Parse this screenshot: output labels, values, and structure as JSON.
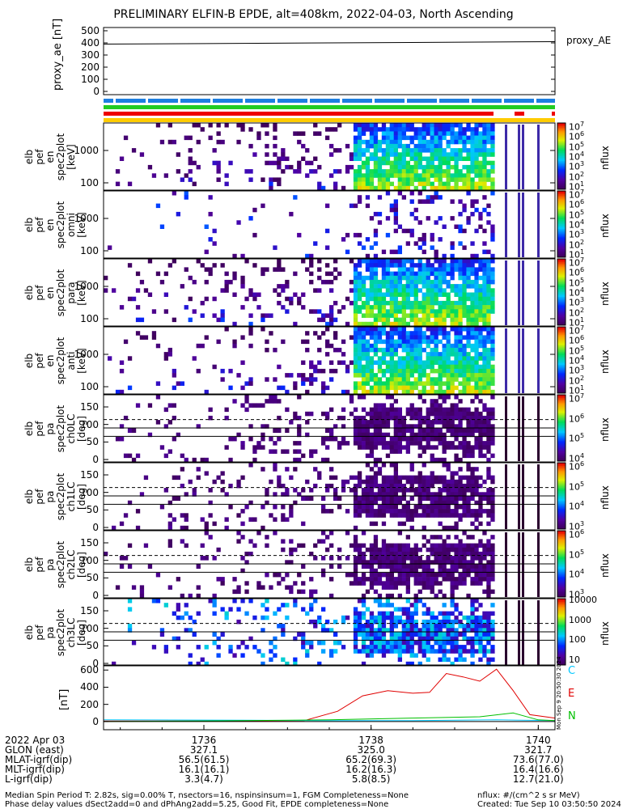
{
  "title": "PRELIMINARY ELFIN-B EPDE, alt=408km, 2022-04-03, North Ascending",
  "proxy_ae": {
    "ylabel": "proxy_ae [nT]",
    "legend": "proxy_AE",
    "yticks": [
      "500",
      "400",
      "300",
      "200",
      "100",
      "0"
    ]
  },
  "panels": [
    {
      "ylabel": [
        "elb",
        "pef",
        "en",
        "spec2plot",
        "[keV]"
      ],
      "yticks": [
        "1000",
        "100"
      ],
      "cbar_ticks": [
        "10",
        "10",
        "10",
        "10",
        "10",
        "10",
        "10"
      ],
      "cbar_exp": [
        "7",
        "6",
        "5",
        "4",
        "3",
        "2",
        "1"
      ],
      "cbar_label": "nflux",
      "kind": "energy"
    },
    {
      "ylabel": [
        "elb",
        "pef",
        "en",
        "spec2plot",
        "omni",
        "[keV]"
      ],
      "yticks": [
        "1000",
        "100"
      ],
      "cbar_ticks": [
        "10",
        "10",
        "10",
        "10",
        "10",
        "10",
        "10"
      ],
      "cbar_exp": [
        "7",
        "6",
        "5",
        "4",
        "3",
        "2",
        "1"
      ],
      "cbar_label": "nflux",
      "kind": "energy"
    },
    {
      "ylabel": [
        "elb",
        "pef",
        "en",
        "spec2plot",
        "para",
        "[keV]"
      ],
      "yticks": [
        "1000",
        "100"
      ],
      "cbar_ticks": [
        "10",
        "10",
        "10",
        "10",
        "10",
        "10",
        "10"
      ],
      "cbar_exp": [
        "7",
        "6",
        "5",
        "4",
        "3",
        "2",
        "1"
      ],
      "cbar_label": "nflux",
      "kind": "energy"
    },
    {
      "ylabel": [
        "elb",
        "pef",
        "en",
        "spec2plot",
        "anti",
        "[keV]"
      ],
      "yticks": [
        "1000",
        "100"
      ],
      "cbar_ticks": [
        "10",
        "10",
        "10",
        "10",
        "10",
        "10",
        "10"
      ],
      "cbar_exp": [
        "7",
        "6",
        "5",
        "4",
        "3",
        "2",
        "1"
      ],
      "cbar_label": "nflux",
      "kind": "energy"
    },
    {
      "ylabel": [
        "elb",
        "pef",
        "pa",
        "spec2plot",
        "ch0LC",
        "[deg]"
      ],
      "yticks": [
        "150",
        "100",
        "50",
        "0"
      ],
      "cbar_ticks": [
        "10",
        "10",
        "10",
        "10"
      ],
      "cbar_exp": [
        "7",
        "6",
        "5",
        "4"
      ],
      "cbar_label": "nflux",
      "kind": "pa"
    },
    {
      "ylabel": [
        "elb",
        "pef",
        "pa",
        "spec2plot",
        "ch1LC",
        "[deg]"
      ],
      "yticks": [
        "150",
        "100",
        "50",
        "0"
      ],
      "cbar_ticks": [
        "10",
        "10",
        "10",
        "10"
      ],
      "cbar_exp": [
        "6",
        "5",
        "4",
        "3"
      ],
      "cbar_label": "nflux",
      "kind": "pa"
    },
    {
      "ylabel": [
        "elb",
        "pef",
        "pa",
        "spec2plot",
        "ch2LC",
        "[deg]"
      ],
      "yticks": [
        "150",
        "100",
        "50",
        "0"
      ],
      "cbar_ticks": [
        "10",
        "10",
        "10",
        "10"
      ],
      "cbar_exp": [
        "6",
        "5",
        "4",
        "3"
      ],
      "cbar_label": "nflux",
      "kind": "pa"
    },
    {
      "ylabel": [
        "elb",
        "pef",
        "pa",
        "spec2plot",
        "ch3LC",
        "[deg]"
      ],
      "yticks": [
        "150",
        "100",
        "50",
        "0"
      ],
      "cbar_ticks": [
        "10000",
        "1000",
        "100",
        "10"
      ],
      "cbar_exp": [
        "",
        "",
        "",
        ""
      ],
      "cbar_label": "nflux",
      "kind": "pa"
    }
  ],
  "mag": {
    "ylabel": "[nT]",
    "yticks": [
      "600",
      "400",
      "200",
      "0"
    ],
    "legend": [
      {
        "name": "C",
        "color": "#00c8ff"
      },
      {
        "name": "E",
        "color": "#e00000"
      },
      {
        "name": "N",
        "color": "#00c000"
      }
    ],
    "side_text": "Mon Sep 9 20:50:30 2024"
  },
  "x_axis": {
    "ticks": [
      "1736",
      "1738",
      "1740"
    ],
    "rows": [
      {
        "label": "2022 Apr 03",
        "vals": [
          "1736",
          "1738",
          "1740"
        ]
      },
      {
        "label": "GLON (east)",
        "vals": [
          "327.1",
          "325.0",
          "321.7"
        ]
      },
      {
        "label": "MLAT-igrf(dip)",
        "vals": [
          "56.5(61.5)",
          "65.2(69.3)",
          "73.6(77.0)"
        ]
      },
      {
        "label": "MLT-igrf(dip)",
        "vals": [
          "16.1(16.1)",
          "16.2(16.3)",
          "16.4(16.6)"
        ]
      },
      {
        "label": "L-igrf(dip)",
        "vals": [
          "3.3(4.7)",
          "5.8(8.5)",
          "12.7(21.0)"
        ]
      }
    ]
  },
  "footer": {
    "line1": "Median Spin Period T: 2.82s, sig=0.00% T, nsectors=16, nspinsinsum=1, FGM Completeness=None",
    "line2": "Phase delay values dSect2add=0 and dPhAng2add=5.25, Good Fit, EPDE completeness=None",
    "units": "nflux: #/(cm^2 s sr MeV)",
    "created": "Created: Tue Sep 10 03:50:50 2024"
  },
  "chart_data": {
    "type": "heatmap",
    "title": "PRELIMINARY ELFIN-B EPDE, alt=408km, 2022-04-03, North Ascending",
    "x_ticks": [
      "1736",
      "1738",
      "1740"
    ],
    "proxy_ae": {
      "x": [
        1734.8,
        1740.2
      ],
      "y": [
        390,
        410
      ],
      "ylim": [
        0,
        500
      ]
    },
    "mag": {
      "ylim": [
        -60,
        640
      ],
      "series": [
        {
          "name": "E",
          "values": [
            [
              1734.8,
              5
            ],
            [
              1736.0,
              5
            ],
            [
              1737.2,
              10
            ],
            [
              1737.6,
              120
            ],
            [
              1737.9,
              300
            ],
            [
              1738.2,
              360
            ],
            [
              1738.5,
              330
            ],
            [
              1738.7,
              340
            ],
            [
              1738.9,
              560
            ],
            [
              1739.1,
              520
            ],
            [
              1739.3,
              470
            ],
            [
              1739.5,
              610
            ],
            [
              1739.7,
              360
            ],
            [
              1739.9,
              80
            ],
            [
              1740.2,
              40
            ]
          ]
        },
        {
          "name": "C",
          "values": [
            [
              1734.8,
              20
            ],
            [
              1736.5,
              15
            ],
            [
              1737.5,
              10
            ],
            [
              1738.5,
              10
            ],
            [
              1739.5,
              20
            ],
            [
              1740.2,
              10
            ]
          ]
        },
        {
          "name": "N",
          "values": [
            [
              1734.8,
              0
            ],
            [
              1736.5,
              10
            ],
            [
              1737.5,
              20
            ],
            [
              1738.5,
              40
            ],
            [
              1739.3,
              55
            ],
            [
              1739.7,
              100
            ],
            [
              1740.0,
              20
            ],
            [
              1740.2,
              10
            ]
          ]
        }
      ]
    },
    "spectrogram_panels": [
      "en",
      "en omni",
      "en para",
      "en anti",
      "pa ch0LC",
      "pa ch1LC",
      "pa ch2LC",
      "pa ch3LC"
    ],
    "energy_range_keV": [
      60,
      6000
    ],
    "pa_range_deg": [
      0,
      180
    ]
  }
}
